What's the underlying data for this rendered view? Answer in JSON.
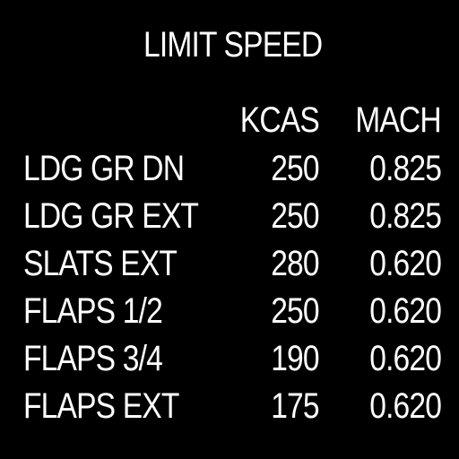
{
  "screen": {
    "title": "LIMIT SPEED",
    "columns": {
      "kcas": "KCAS",
      "mach": "MACH"
    },
    "rows": [
      {
        "label": "LDG GR DN",
        "kcas": "250",
        "mach": "0.825"
      },
      {
        "label": "LDG GR EXT",
        "kcas": "250",
        "mach": "0.825"
      },
      {
        "label": "SLATS EXT",
        "kcas": "280",
        "mach": "0.620"
      },
      {
        "label": "FLAPS 1/2",
        "kcas": "250",
        "mach": "0.620"
      },
      {
        "label": "FLAPS 3/4",
        "kcas": "190",
        "mach": "0.620"
      },
      {
        "label": "FLAPS EXT",
        "kcas": "175",
        "mach": "0.620"
      }
    ]
  },
  "colors": {
    "background": "#000000",
    "text": "#ffffff"
  }
}
